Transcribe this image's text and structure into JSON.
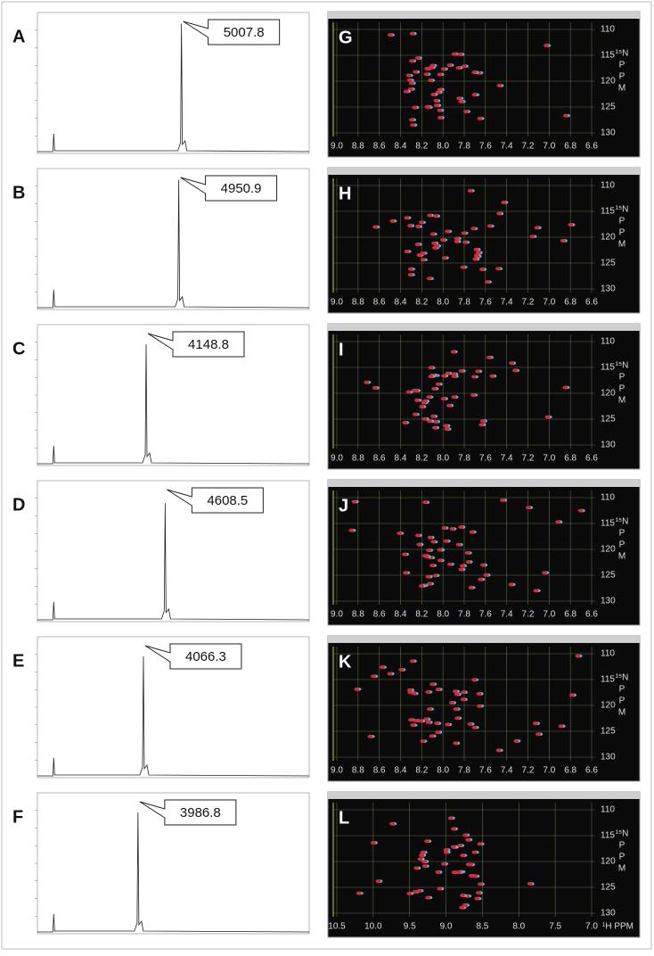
{
  "left_panels": [
    {
      "letter": "A",
      "peak_label": "5007.8"
    },
    {
      "letter": "B",
      "peak_label": "4950.9"
    },
    {
      "letter": "C",
      "peak_label": "4148.8"
    },
    {
      "letter": "D",
      "peak_label": "4608.5"
    },
    {
      "letter": "E",
      "peak_label": "4066.3"
    },
    {
      "letter": "F",
      "peak_label": "3986.8"
    }
  ],
  "y_axis_label": [
    "¹⁵N",
    "P",
    "P",
    "M"
  ],
  "nmr_panels": [
    {
      "letter": "G",
      "xticks": [
        "9.0",
        "8.8",
        "8.6",
        "8.4",
        "8.2",
        "8.0",
        "7.8",
        "7.6",
        "7.4",
        "7.2",
        "7.0",
        "6.8",
        "6.6"
      ],
      "yticks": [
        "110",
        "115",
        "120",
        "125",
        "130"
      ]
    },
    {
      "letter": "H",
      "xticks": [
        "9.0",
        "8.8",
        "8.6",
        "8.4",
        "8.2",
        "8.0",
        "7.8",
        "7.6",
        "7.4",
        "7.2",
        "7.0",
        "6.8",
        "6.6"
      ],
      "yticks": [
        "110",
        "115",
        "120",
        "125",
        "130"
      ]
    },
    {
      "letter": "I",
      "xticks": [
        "9.0",
        "8.8",
        "8.6",
        "8.4",
        "8.2",
        "8.0",
        "7.8",
        "7.6",
        "7.4",
        "7.2",
        "7.0",
        "6.8",
        "6.6"
      ],
      "yticks": [
        "110",
        "115",
        "120",
        "125",
        "130"
      ]
    },
    {
      "letter": "J",
      "xticks": [
        "9.0",
        "8.8",
        "8.6",
        "8.4",
        "8.2",
        "8.0",
        "7.8",
        "7.6",
        "7.4",
        "7.2",
        "7.0",
        "6.8",
        "6.6"
      ],
      "yticks": [
        "110",
        "115",
        "120",
        "125",
        "130"
      ]
    },
    {
      "letter": "K",
      "xticks": [
        "9.0",
        "8.8",
        "8.6",
        "8.4",
        "8.2",
        "8.0",
        "7.8",
        "7.6",
        "7.4",
        "7.2",
        "7.0",
        "6.8",
        "6.6"
      ],
      "yticks": [
        "110",
        "115",
        "120",
        "125",
        "130"
      ]
    },
    {
      "letter": "L",
      "xticks": [
        "10.5",
        "10.0",
        "9.5",
        "9.0",
        "8.5",
        "8.0",
        "7.5",
        "7.0"
      ],
      "yticks": [
        "110",
        "115",
        "120",
        "125",
        "130"
      ],
      "x_axis_label": "¹H PPM"
    }
  ]
}
